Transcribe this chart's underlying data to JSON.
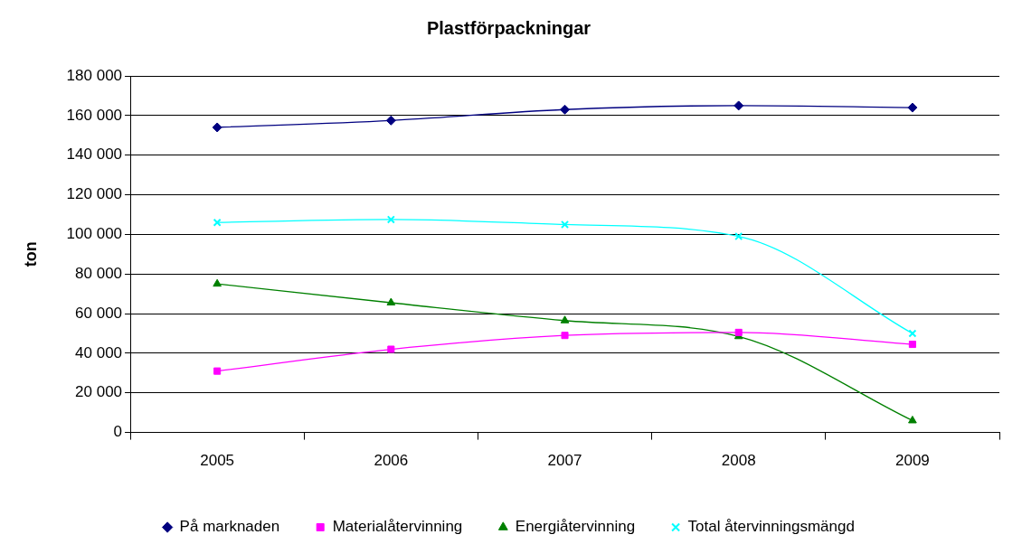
{
  "chart_data": {
    "type": "line",
    "title": "Plastförpackningar",
    "ylabel": "ton",
    "categories": [
      "2005",
      "2006",
      "2007",
      "2008",
      "2009"
    ],
    "series": [
      {
        "name": "På marknaden",
        "color": "#000080",
        "marker": "diamond",
        "values": [
          154000,
          157500,
          163000,
          165000,
          164000
        ]
      },
      {
        "name": "Materialåtervinning",
        "color": "#ff00ff",
        "marker": "square",
        "values": [
          31000,
          42000,
          49000,
          50500,
          44500
        ]
      },
      {
        "name": "Energiåtervinning",
        "color": "#008000",
        "marker": "triangle",
        "values": [
          75000,
          65500,
          56500,
          48500,
          6000
        ]
      },
      {
        "name": "Total återvinningsmängd",
        "color": "#00ffff",
        "marker": "cross",
        "values": [
          106000,
          107500,
          105000,
          99000,
          50000
        ]
      }
    ],
    "ylim": [
      0,
      180000
    ],
    "yticks": [
      0,
      {
        "value": 20000,
        "label": "20 000"
      },
      {
        "value": 40000,
        "label": "40 000"
      },
      {
        "value": 60000,
        "label": "60 000"
      },
      {
        "value": 80000,
        "label": "80 000"
      },
      {
        "value": 100000,
        "label": "100 000"
      },
      {
        "value": 120000,
        "label": "120 000"
      },
      {
        "value": 140000,
        "label": "140 000"
      },
      {
        "value": 160000,
        "label": "160 000"
      },
      {
        "value": 180000,
        "label": "180 000"
      }
    ],
    "grid": "y",
    "legend": "bottom",
    "line_style": "solid"
  }
}
